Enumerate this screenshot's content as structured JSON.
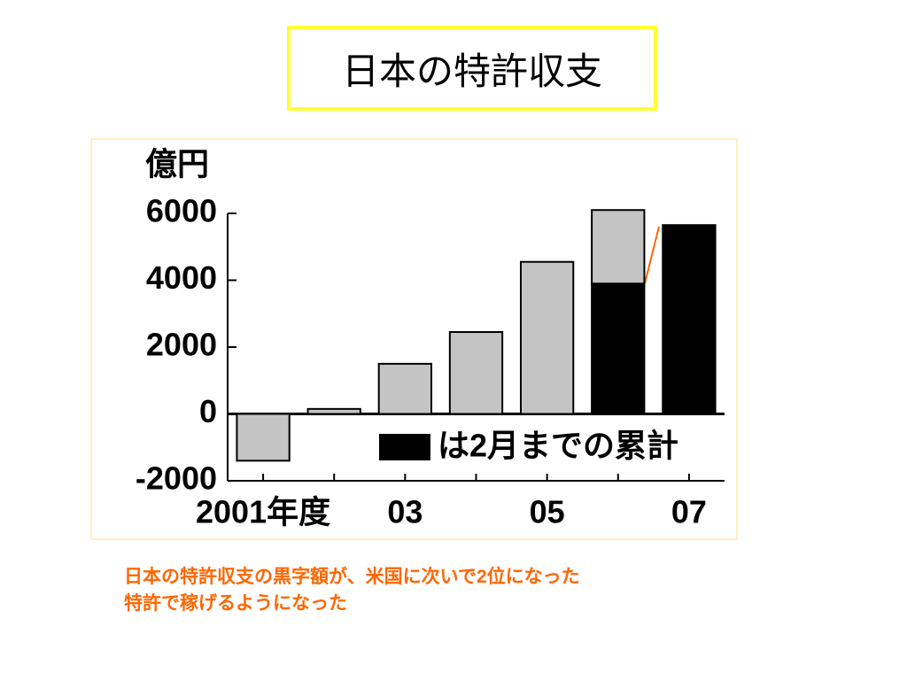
{
  "title": "日本の特許収支",
  "chart_data": {
    "type": "bar",
    "stacked": true,
    "y_label": "億円",
    "categories": [
      "2001年度",
      null,
      "03",
      null,
      "05",
      null,
      "07"
    ],
    "series": [
      {
        "name": "は2月までの累計",
        "color": "#000000",
        "values": [
          null,
          null,
          null,
          null,
          null,
          3900,
          5650
        ]
      },
      {
        "color": "#c4c4c4",
        "values": [
          -1400,
          150,
          1500,
          2450,
          4550,
          2200,
          null
        ]
      }
    ],
    "ylim": [
      -2000,
      6000
    ],
    "yticks": [
      -2000,
      0,
      2000,
      4000,
      6000
    ]
  },
  "caption": [
    "日本の特許収支の黒字額が、米国に次いで2位になった",
    "特許で稼げるようになった"
  ]
}
